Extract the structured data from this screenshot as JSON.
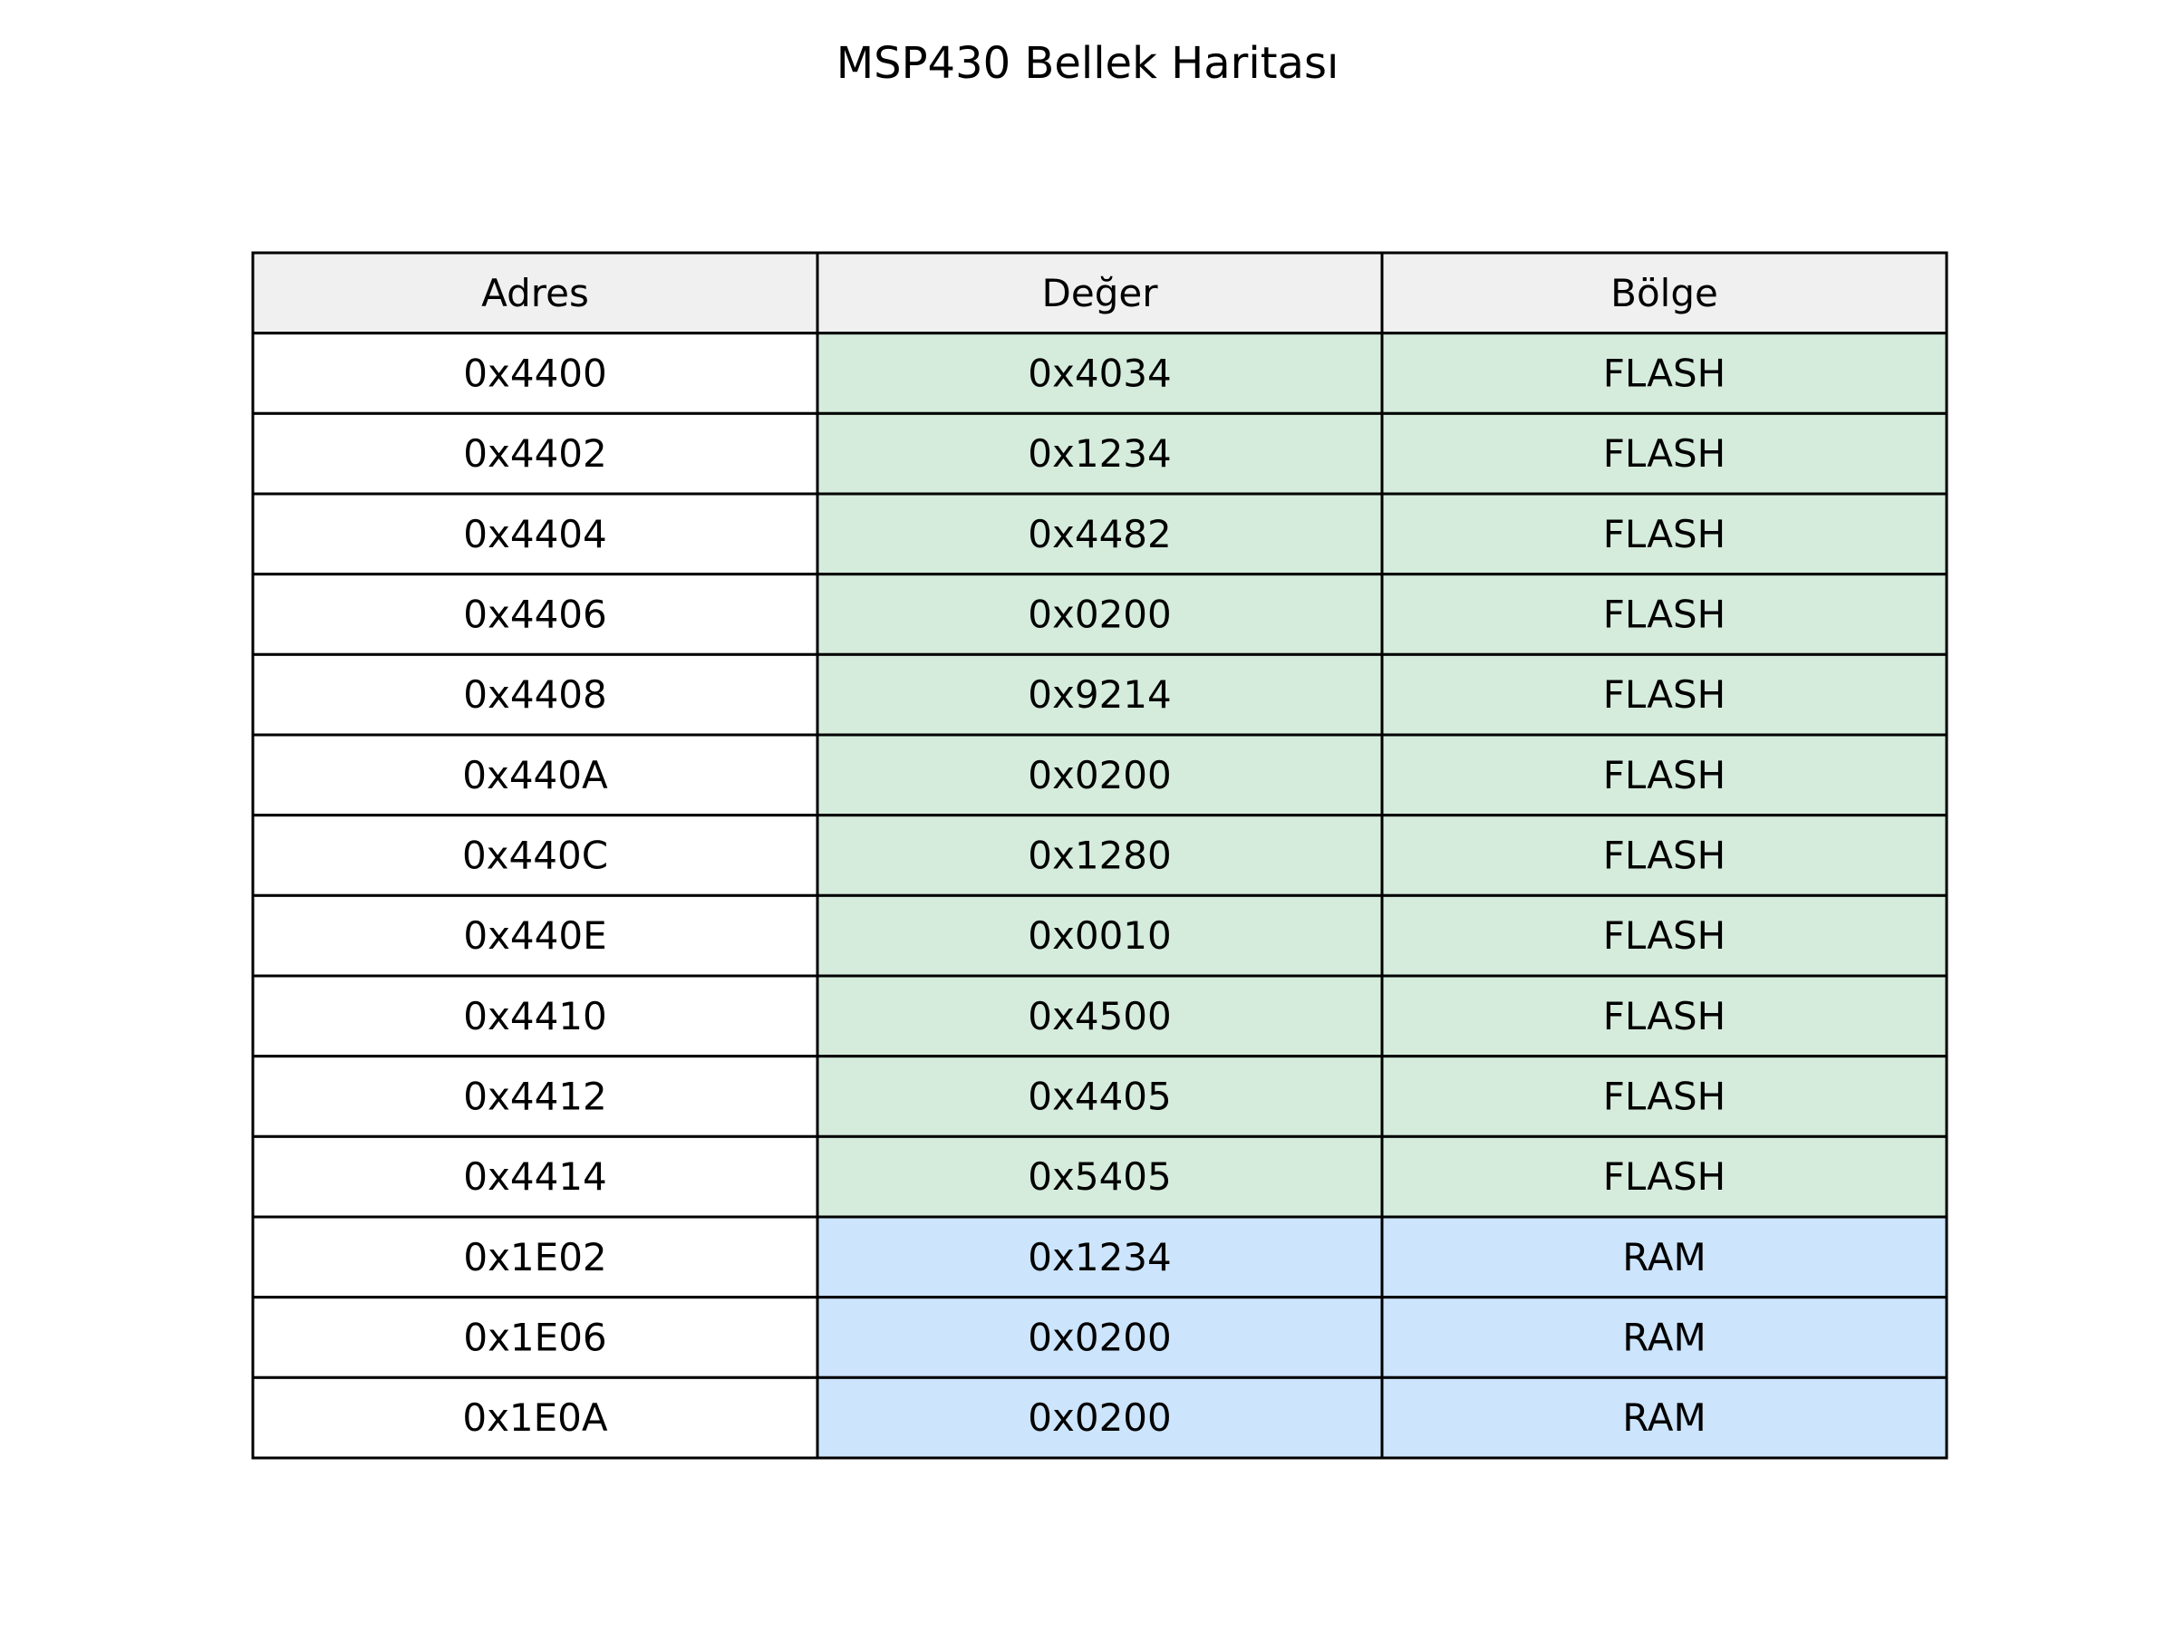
{
  "title": "MSP430 Bellek Haritası",
  "colors": {
    "header_bg": "#f0f0f0",
    "address_bg": "#ffffff",
    "flash_bg": "#d5ecdc",
    "ram_bg": "#cce4fc",
    "border": "#000000"
  },
  "chart_data": {
    "type": "table",
    "title": "MSP430 Bellek Haritası",
    "columns": [
      "Adres",
      "Değer",
      "Bölge"
    ],
    "rows": [
      [
        "0x4400",
        "0x4034",
        "FLASH"
      ],
      [
        "0x4402",
        "0x1234",
        "FLASH"
      ],
      [
        "0x4404",
        "0x4482",
        "FLASH"
      ],
      [
        "0x4406",
        "0x0200",
        "FLASH"
      ],
      [
        "0x4408",
        "0x9214",
        "FLASH"
      ],
      [
        "0x440A",
        "0x0200",
        "FLASH"
      ],
      [
        "0x440C",
        "0x1280",
        "FLASH"
      ],
      [
        "0x440E",
        "0x0010",
        "FLASH"
      ],
      [
        "0x4410",
        "0x4500",
        "FLASH"
      ],
      [
        "0x4412",
        "0x4405",
        "FLASH"
      ],
      [
        "0x4414",
        "0x5405",
        "FLASH"
      ],
      [
        "0x1E02",
        "0x1234",
        "RAM"
      ],
      [
        "0x1E06",
        "0x0200",
        "RAM"
      ],
      [
        "0x1E0A",
        "0x0200",
        "RAM"
      ]
    ]
  }
}
